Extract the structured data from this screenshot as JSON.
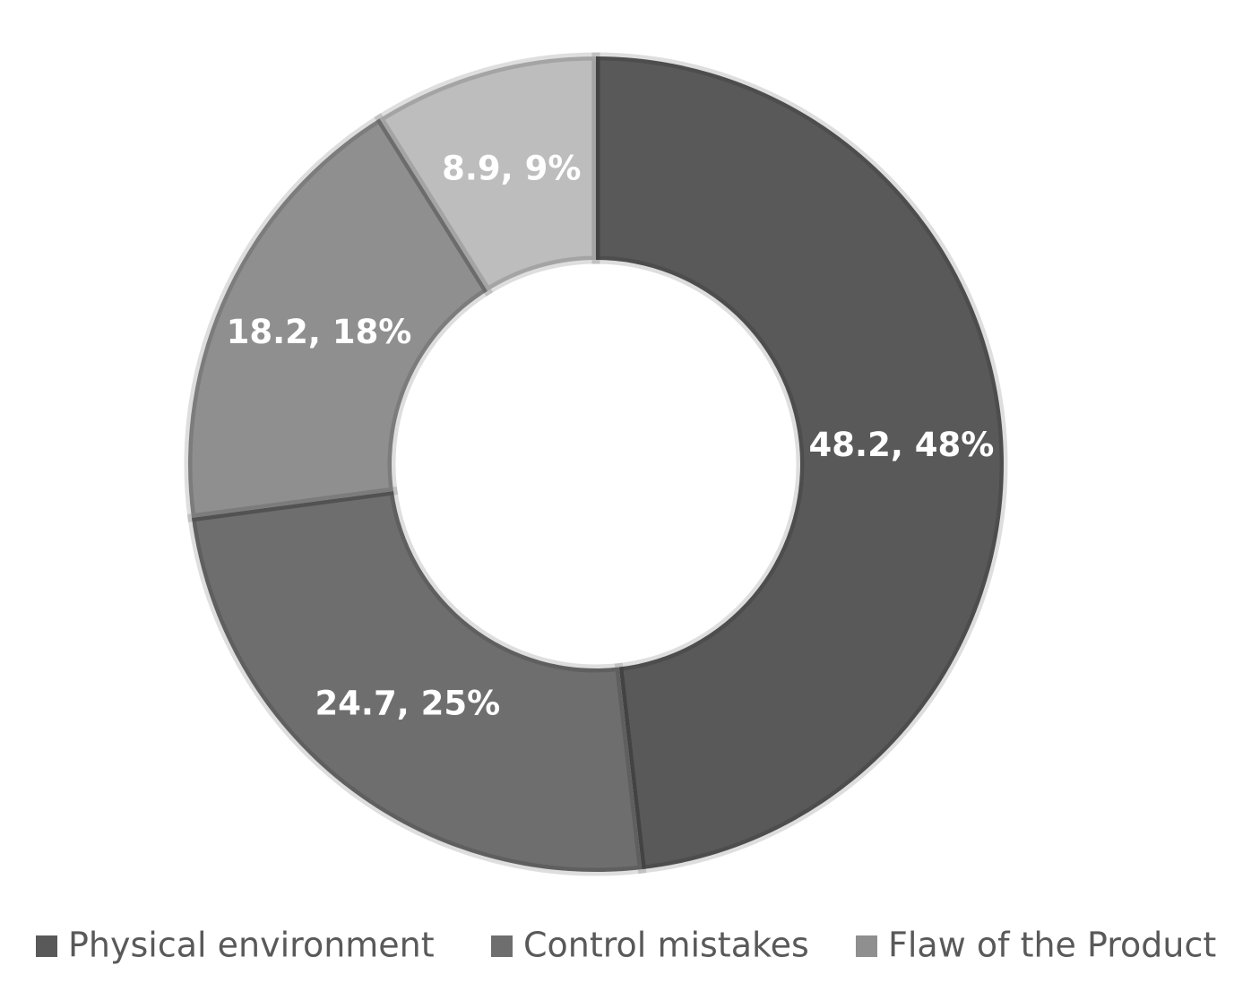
{
  "chart_data": {
    "type": "donut",
    "categories": [
      "Physical environment",
      "Control mistakes",
      "Flaw of the Product",
      null
    ],
    "values": [
      48.2,
      24.7,
      18.2,
      8.9
    ],
    "value_labels": [
      "48.2, 48%",
      "24.7, 25%",
      "18.2, 18%",
      "8.9, 9%"
    ],
    "colors": [
      "#595959",
      "#6e6e6e",
      "#8f8f8f",
      "#bdbdbd"
    ],
    "legend": "bottom"
  }
}
